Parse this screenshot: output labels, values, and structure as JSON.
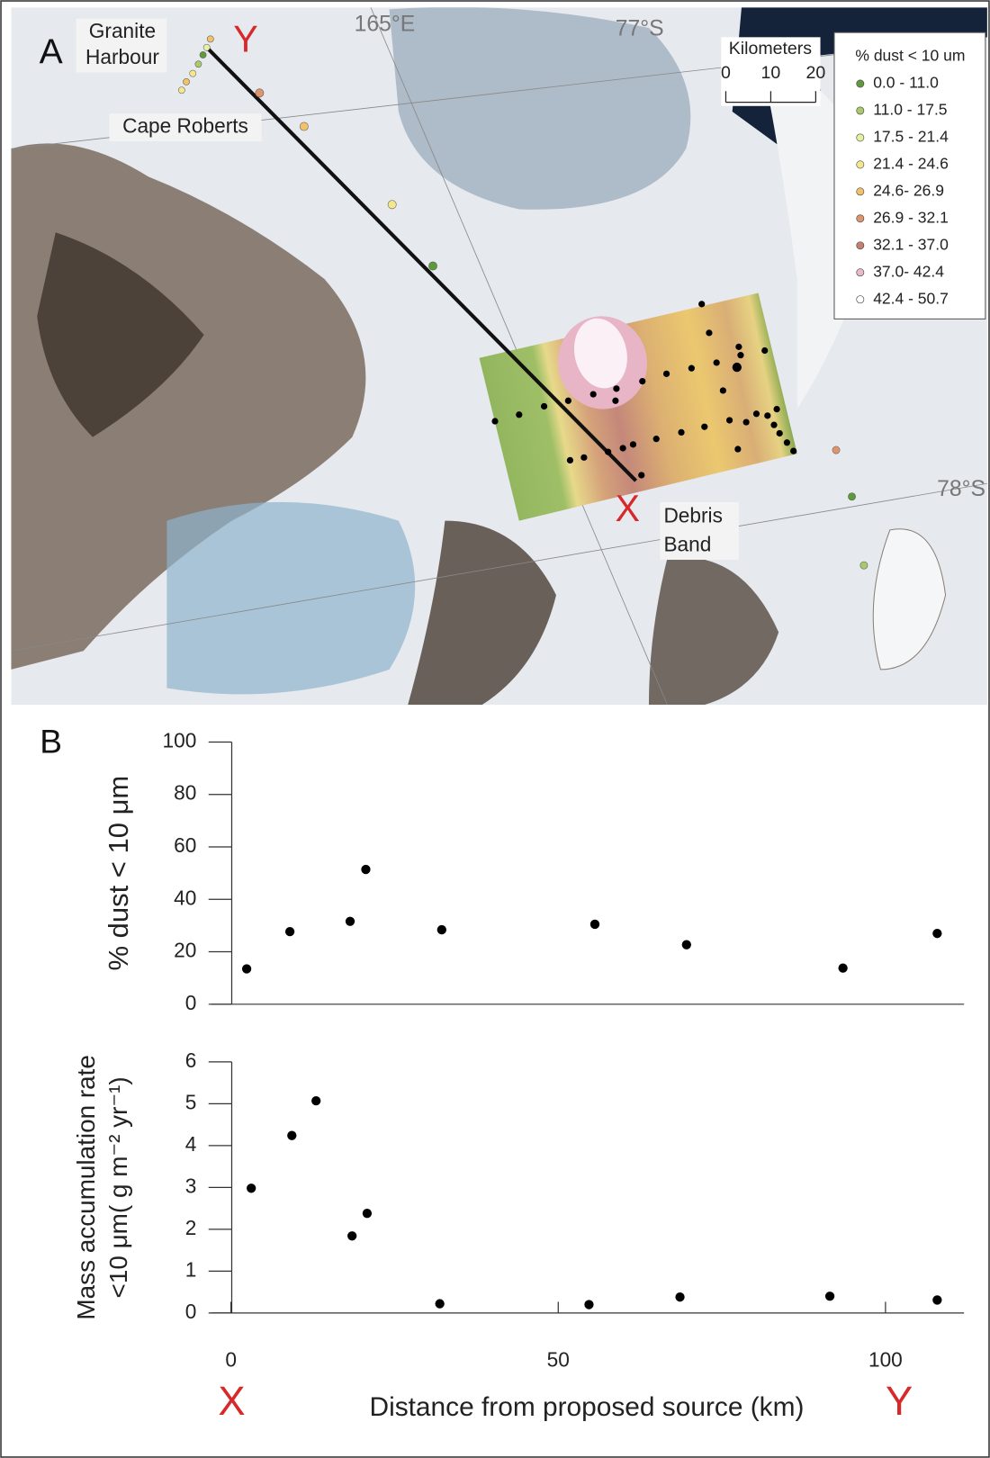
{
  "map": {
    "panel_label": "A",
    "place_labels": [
      [
        "Granite",
        "Harbour"
      ],
      [
        "Cape Roberts"
      ],
      [
        "Debris",
        "Band"
      ]
    ],
    "endpoint_labels": [
      "Y",
      "X"
    ],
    "graticule_labels": [
      "165°E",
      "77°S",
      "78°S"
    ],
    "scale": {
      "title": "Kilometers",
      "ticks": [
        0,
        10,
        20
      ]
    },
    "legend": {
      "title": "% dust < 10 um",
      "items": [
        {
          "label": "0.0 - 11.0",
          "color": "#5e9a3c"
        },
        {
          "label": "11.0 - 17.5",
          "color": "#a9c96b"
        },
        {
          "label": "17.5 - 21.4",
          "color": "#e6efa2"
        },
        {
          "label": "21.4 - 24.6",
          "color": "#f4e78c"
        },
        {
          "label": "24.6- 26.9",
          "color": "#f1c26b"
        },
        {
          "label": "26.9 - 32.1",
          "color": "#df956b"
        },
        {
          "label": "32.1 - 37.0",
          "color": "#c47f70"
        },
        {
          "label": "37.0- 42.4",
          "color": "#e9b9c9"
        },
        {
          "label": "42.4 - 50.7",
          "color": "#ffffff"
        }
      ]
    }
  },
  "panel_b_label": "B",
  "endpoint_axis_labels": [
    "X",
    "Y"
  ],
  "chart_data": [
    {
      "type": "scatter",
      "ylabel": "% dust < 10 μm",
      "x": [
        2.4,
        9.0,
        18.2,
        20.6,
        32.2,
        55.6,
        69.6,
        93.5,
        107.9
      ],
      "values": [
        13.5,
        27.7,
        31.6,
        51.4,
        28.4,
        30.5,
        22.7,
        13.8,
        27.0
      ],
      "xlim": [
        -3,
        112
      ],
      "ylim": [
        0,
        100
      ],
      "yticks": [
        0,
        20,
        40,
        60,
        80,
        100
      ],
      "color": "#000000"
    },
    {
      "type": "scatter",
      "ylabel": [
        "Mass accumulation rate",
        "<10 μm( g m⁻² yr⁻¹)"
      ],
      "xlabel": "Distance from proposed source (km)",
      "x": [
        3.1,
        9.3,
        13.0,
        18.5,
        20.8,
        31.9,
        54.7,
        68.6,
        91.5,
        107.9
      ],
      "values": [
        2.98,
        4.24,
        5.07,
        1.84,
        2.38,
        0.22,
        0.2,
        0.38,
        0.4,
        0.31
      ],
      "xlim": [
        -3,
        112
      ],
      "ylim": [
        0,
        6
      ],
      "xticks": [
        0,
        50,
        100
      ],
      "yticks": [
        0,
        1,
        2,
        3,
        4,
        5,
        6
      ],
      "color": "#000000"
    }
  ]
}
